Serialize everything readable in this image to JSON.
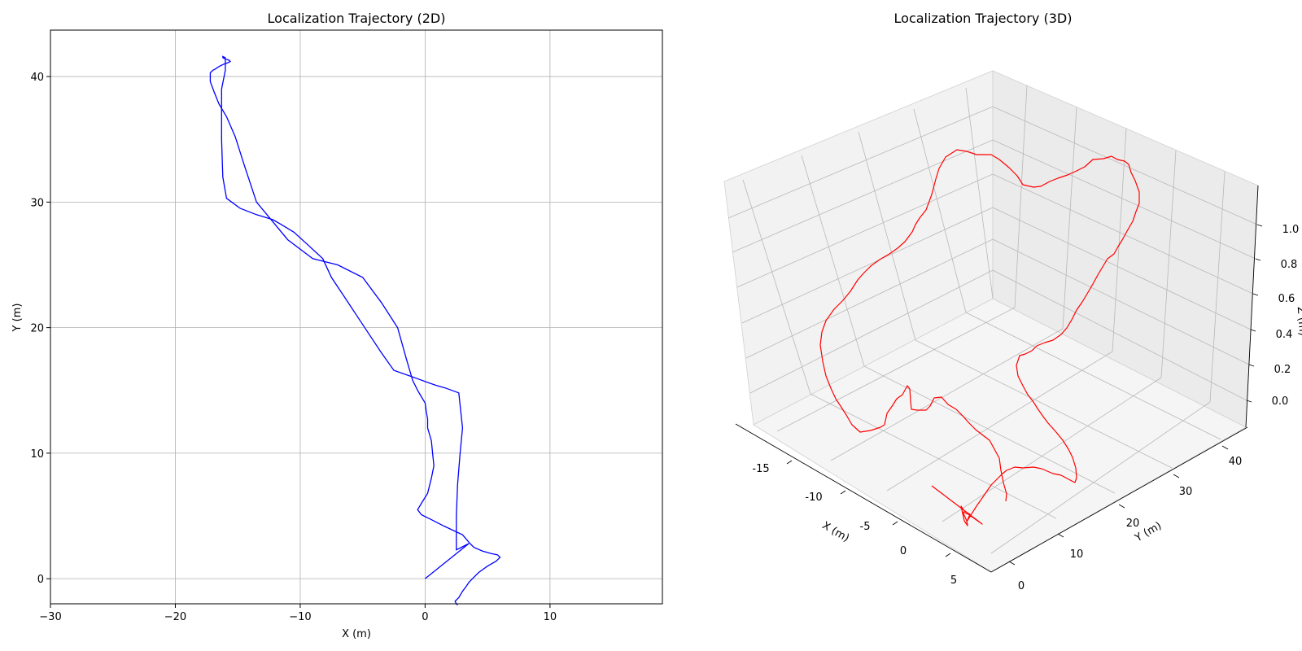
{
  "chart_data": [
    {
      "type": "line",
      "title": "Localization Trajectory (2D)",
      "xlabel": "X (m)",
      "ylabel": "Y (m)",
      "xlim": [
        -30,
        19
      ],
      "ylim": [
        -2,
        43.7
      ],
      "xticks": [
        -30,
        -20,
        -10,
        0,
        10
      ],
      "yticks": [
        0,
        10,
        20,
        30,
        40
      ],
      "grid": true,
      "series": [
        {
          "color": "#0000ff",
          "x": [
            0,
            3.5,
            2.5,
            2.5,
            2.6,
            2.8,
            3.0,
            2.7,
            1.6,
            0.9,
            0.3,
            -0.8,
            -2.5,
            -3.5,
            -4.5,
            -5.5,
            -6.5,
            -7.5,
            -8.2,
            -9.5,
            -10.5,
            -11.5,
            -12.2,
            -13.5,
            -14.8,
            -15.9,
            -16.2,
            -16.3,
            -16.3,
            -16.0,
            -16.0,
            -16.2,
            -16.2,
            -16.2,
            -16.2,
            -16.0,
            -15.7,
            -15.6,
            -15.8,
            -16.1,
            -16.5,
            -16.8,
            -17.0,
            -17.2,
            -17.2,
            -16.9,
            -16.5,
            -15.9,
            -15.2,
            -14.5,
            -13.5,
            -11.0,
            -9.0,
            -7.0,
            -5.0,
            -3.5,
            -2.2,
            -1.5,
            -1.0,
            -0.6,
            -0.3,
            0.0,
            0.1,
            0.2,
            0.2,
            0.5,
            0.6,
            0.7,
            0.5,
            0.2,
            -0.3,
            -0.6,
            -0.3,
            0.5,
            1.5,
            3.0,
            3.6,
            3.9,
            4.6,
            5.3,
            5.8,
            6.0,
            5.7,
            5.0,
            4.3,
            3.8,
            3.5,
            3.3,
            3.0,
            2.7,
            2.4,
            2.5,
            2.6
          ],
          "y": [
            0,
            2.8,
            2.3,
            5.0,
            7.5,
            10.0,
            12.0,
            14.8,
            15.2,
            15.4,
            15.6,
            16.0,
            16.6,
            18.0,
            19.5,
            21.0,
            22.5,
            24.0,
            25.5,
            26.7,
            27.6,
            28.2,
            28.6,
            29.0,
            29.5,
            30.3,
            32.0,
            35.0,
            39.0,
            40.5,
            41.5,
            41.6,
            41.6,
            41.6,
            41.5,
            41.4,
            41.3,
            41.2,
            41.1,
            41.0,
            40.8,
            40.6,
            40.5,
            40.3,
            39.6,
            38.8,
            37.8,
            36.8,
            35.2,
            33.0,
            30.0,
            27.0,
            25.5,
            25.0,
            24.0,
            22.0,
            20.0,
            17.5,
            15.8,
            15.0,
            14.5,
            14.0,
            13.3,
            12.7,
            12.0,
            11.0,
            10.0,
            9.0,
            8.0,
            6.8,
            6.0,
            5.5,
            5.1,
            4.7,
            4.2,
            3.5,
            2.8,
            2.5,
            2.2,
            2.0,
            1.9,
            1.7,
            1.4,
            1.0,
            0.5,
            0.0,
            -0.3,
            -0.6,
            -1.0,
            -1.5,
            -1.8,
            -2.0,
            -2.1
          ]
        }
      ]
    },
    {
      "type": "line",
      "title": "Localization Trajectory (3D)",
      "xlabel": "X (m)",
      "ylabel": "Y (m)",
      "zlabel": "Z (m)",
      "xticks": [
        -15,
        -10,
        -5,
        0,
        5
      ],
      "yticks": [
        0,
        10,
        20,
        30,
        40
      ],
      "zticks": [
        0.0,
        0.2,
        0.4,
        0.6,
        0.8,
        1.0
      ],
      "grid": true,
      "series": [
        {
          "color": "#ff0000"
        }
      ]
    }
  ],
  "labels": {
    "title2d": "Localization Trajectory (2D)",
    "xlabel2d": "X (m)",
    "ylabel2d": "Y (m)",
    "title3d": "Localization Trajectory (3D)",
    "xlabel3d": "X (m)",
    "ylabel3d": "Y (m)",
    "zlabel3d": "Z (m)"
  }
}
